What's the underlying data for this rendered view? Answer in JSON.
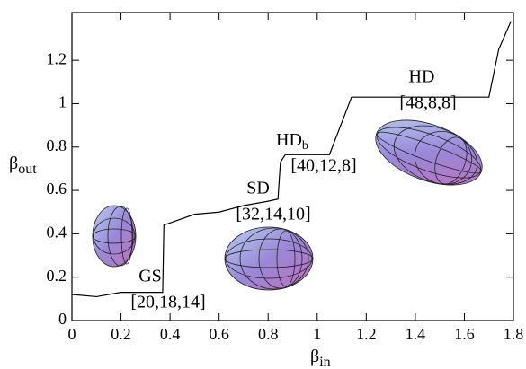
{
  "chart_data": {
    "type": "line",
    "x_label": {
      "text": "β",
      "sub": "in"
    },
    "y_label": {
      "text": "β",
      "sub": "out"
    },
    "x": [
      0,
      0.1,
      0.2,
      0.37,
      0.375,
      0.4,
      0.5,
      0.6,
      0.7,
      0.8,
      0.84,
      0.85,
      0.87,
      1.05,
      1.14,
      1.7,
      1.74,
      1.79
    ],
    "y": [
      0.12,
      0.11,
      0.13,
      0.13,
      0.44,
      0.45,
      0.49,
      0.5,
      0.53,
      0.55,
      0.56,
      0.73,
      0.765,
      0.765,
      1.03,
      1.03,
      1.25,
      1.38
    ],
    "color": "#000000",
    "xlim": [
      0,
      1.8
    ],
    "ylim": [
      0,
      1.42
    ],
    "xticks": [
      0,
      0.2,
      0.4,
      0.6,
      0.8,
      1,
      1.2,
      1.4,
      1.6,
      1.8
    ],
    "yticks": [
      0,
      0.2,
      0.4,
      0.6,
      0.8,
      1,
      1.2
    ],
    "annotations": [
      {
        "text": "GS",
        "config": "[20,18,14]"
      },
      {
        "text": "SD",
        "config": "[32,14,10]"
      },
      {
        "text": "HD",
        "sub": "b",
        "config": "[40,12,8]"
      },
      {
        "text": "HD",
        "config": "[48,8,8]"
      }
    ]
  }
}
